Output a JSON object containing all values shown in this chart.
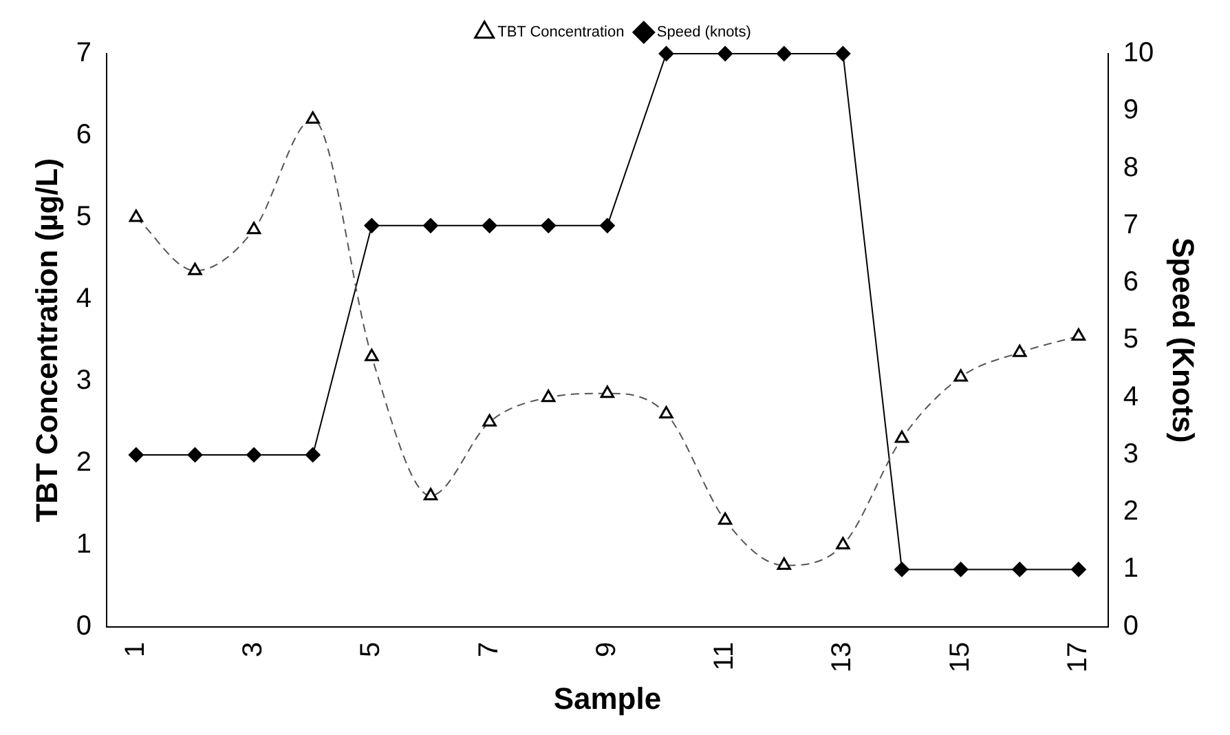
{
  "chart_data": {
    "type": "line",
    "xlabel": "Sample",
    "ylabel": "TBT Concentration (µg/L)",
    "y2label": "Speed (Knots)",
    "categories": [
      "1",
      null,
      "3",
      null,
      "5",
      null,
      "7",
      null,
      "9",
      null,
      "11",
      null,
      "13",
      null,
      "15",
      null,
      "17"
    ],
    "series": [
      {
        "name": "TBT Concentration",
        "color": "#555555",
        "marker": "triangle",
        "line_style": "dashed",
        "values": [
          5.0,
          4.35,
          4.85,
          6.2,
          3.3,
          1.6,
          2.5,
          2.8,
          2.85,
          2.6,
          1.3,
          0.75,
          1.0,
          2.3,
          3.05,
          3.35,
          3.55
        ]
      },
      {
        "name": "Speed (knots)",
        "color": "#000000",
        "marker": "diamond",
        "line_style": "solid",
        "axis": "y2",
        "values": [
          3,
          3,
          3,
          3,
          7,
          7,
          7,
          7,
          7,
          10,
          10,
          10,
          10,
          1,
          1,
          1,
          1
        ]
      }
    ],
    "ylim": [
      0,
      7
    ],
    "yticks": [
      0,
      1,
      2,
      3,
      4,
      5,
      6,
      7
    ],
    "y2lim": [
      0,
      10
    ],
    "y2ticks": [
      0,
      1,
      2,
      3,
      4,
      5,
      6,
      7,
      8,
      9,
      10
    ],
    "grid": false,
    "legend": "top"
  }
}
